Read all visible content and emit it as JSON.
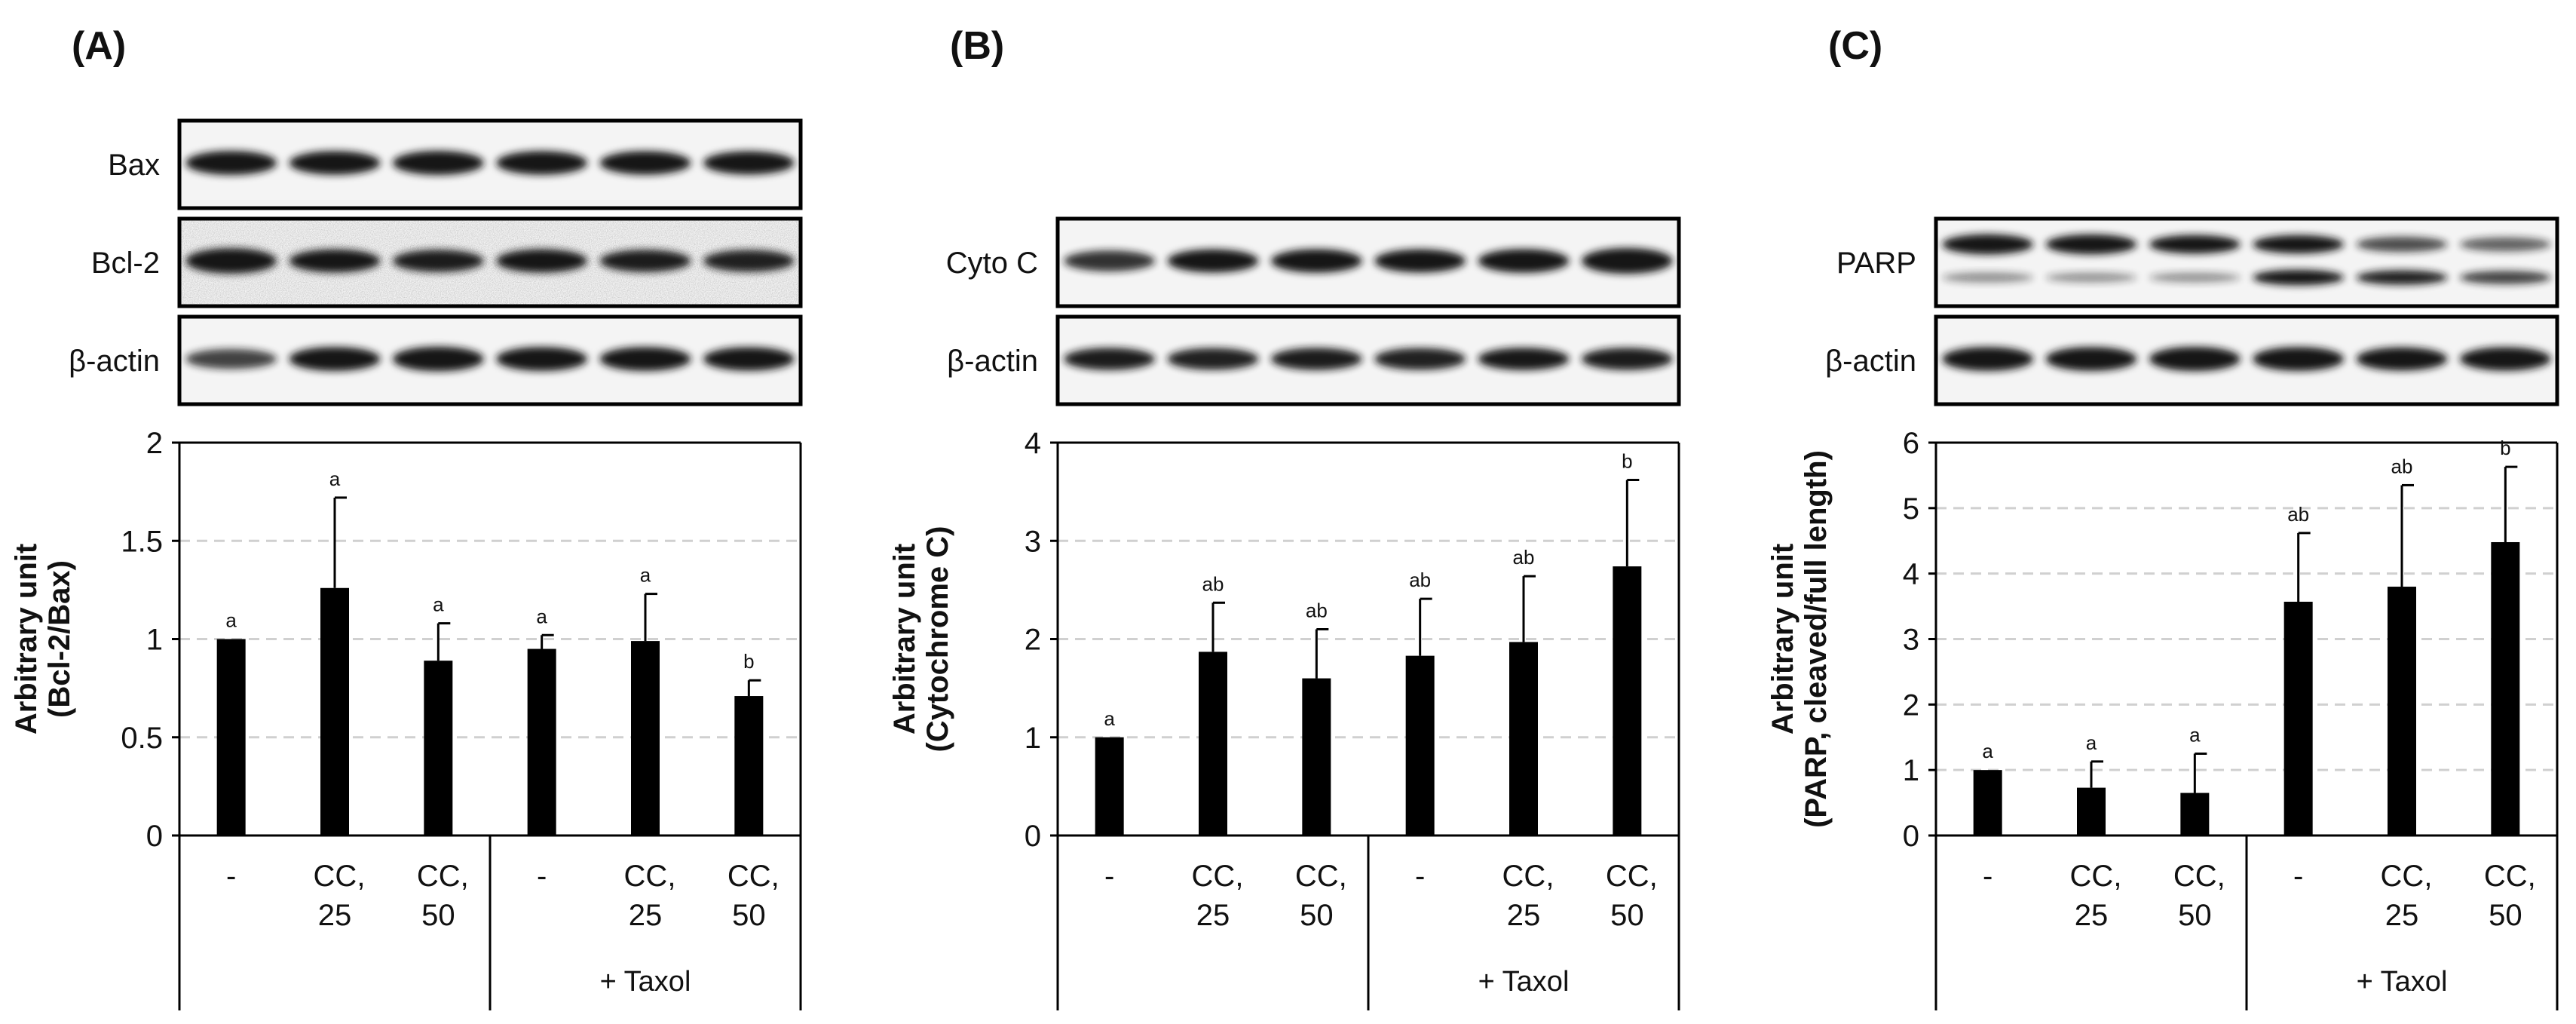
{
  "colors": {
    "bar": "#000000",
    "grid": "#d0d0d0",
    "blot_bg": "#f4f4f4",
    "band": "#151515"
  },
  "chart_data": [
    {
      "panel": "(A)",
      "type": "bar",
      "blots": [
        {
          "label": "Bax",
          "intensities": [
            0.85,
            0.82,
            0.86,
            0.83,
            0.82,
            0.8
          ],
          "noisy": false
        },
        {
          "label": "Bcl-2",
          "intensities": [
            0.95,
            0.78,
            0.72,
            0.8,
            0.72,
            0.7
          ],
          "noisy": true
        },
        {
          "label": "β-actin",
          "intensities": [
            0.55,
            0.85,
            0.9,
            0.85,
            0.85,
            0.82
          ],
          "noisy": false
        }
      ],
      "ylabel_line1": "Arbitrary  unit",
      "ylabel_line2": "(Bcl-2/Bax)",
      "yticks": [
        "0",
        "0.5",
        "1",
        "1.5",
        "2"
      ],
      "ylim": [
        0,
        2
      ],
      "grid": true,
      "categories": [
        [
          "-"
        ],
        [
          "CC,",
          "25"
        ],
        [
          "CC,",
          "50"
        ],
        [
          "-"
        ],
        [
          "CC,",
          "25"
        ],
        [
          "CC,",
          "50"
        ]
      ],
      "group_label": "+ Taxol",
      "values": [
        1.0,
        1.26,
        0.89,
        0.95,
        0.99,
        0.71
      ],
      "errors": [
        0.0,
        0.46,
        0.19,
        0.07,
        0.24,
        0.08
      ],
      "significance": [
        "a",
        "a",
        "a",
        "a",
        "a",
        "b"
      ]
    },
    {
      "panel": "(B)",
      "type": "bar",
      "blots": [
        {
          "label": "Cyto C",
          "intensities": [
            0.62,
            0.8,
            0.82,
            0.8,
            0.84,
            0.98
          ],
          "noisy": false
        },
        {
          "label": "β-actin",
          "intensities": [
            0.72,
            0.7,
            0.72,
            0.7,
            0.74,
            0.72
          ],
          "noisy": false
        }
      ],
      "ylabel_line1": "Arbitrary  unit",
      "ylabel_line2": "(Cytochrome C)",
      "yticks": [
        "0",
        "1",
        "2",
        "3",
        "4"
      ],
      "ylim": [
        0,
        4
      ],
      "grid": true,
      "categories": [
        [
          "-"
        ],
        [
          "CC,",
          "25"
        ],
        [
          "CC,",
          "50"
        ],
        [
          "-"
        ],
        [
          "CC,",
          "25"
        ],
        [
          "CC,",
          "50"
        ]
      ],
      "group_label": "+ Taxol",
      "values": [
        1.0,
        1.87,
        1.6,
        1.83,
        1.97,
        2.74
      ],
      "errors": [
        0.0,
        0.5,
        0.5,
        0.58,
        0.67,
        0.88
      ],
      "significance": [
        "a",
        "ab",
        "ab",
        "ab",
        "ab",
        "b"
      ]
    },
    {
      "panel": "(C)",
      "type": "bar",
      "blots": [
        {
          "label": "PARP",
          "intensities": [
            0.95,
            0.92,
            0.8,
            0.78,
            0.5,
            0.4
          ],
          "noisy": false,
          "double": true,
          "lower": [
            0.2,
            0.18,
            0.18,
            0.8,
            0.7,
            0.55
          ]
        },
        {
          "label": "β-actin",
          "intensities": [
            0.85,
            0.85,
            0.88,
            0.85,
            0.8,
            0.82
          ],
          "noisy": false
        }
      ],
      "ylabel_line1": "Arbitrary  unit",
      "ylabel_line2": "(PARP, cleaved/full length)",
      "yticks": [
        "0",
        "1",
        "2",
        "3",
        "4",
        "5",
        "6"
      ],
      "ylim": [
        0,
        6
      ],
      "grid": true,
      "categories": [
        [
          "-"
        ],
        [
          "CC,",
          "25"
        ],
        [
          "CC,",
          "50"
        ],
        [
          "-"
        ],
        [
          "CC,",
          "25"
        ],
        [
          "CC,",
          "50"
        ]
      ],
      "group_label": "+ Taxol",
      "values": [
        1.0,
        0.73,
        0.65,
        3.57,
        3.8,
        4.48
      ],
      "errors": [
        0.0,
        0.4,
        0.6,
        1.05,
        1.55,
        1.15
      ],
      "significance": [
        "a",
        "a",
        "a",
        "ab",
        "ab",
        "b"
      ]
    }
  ]
}
